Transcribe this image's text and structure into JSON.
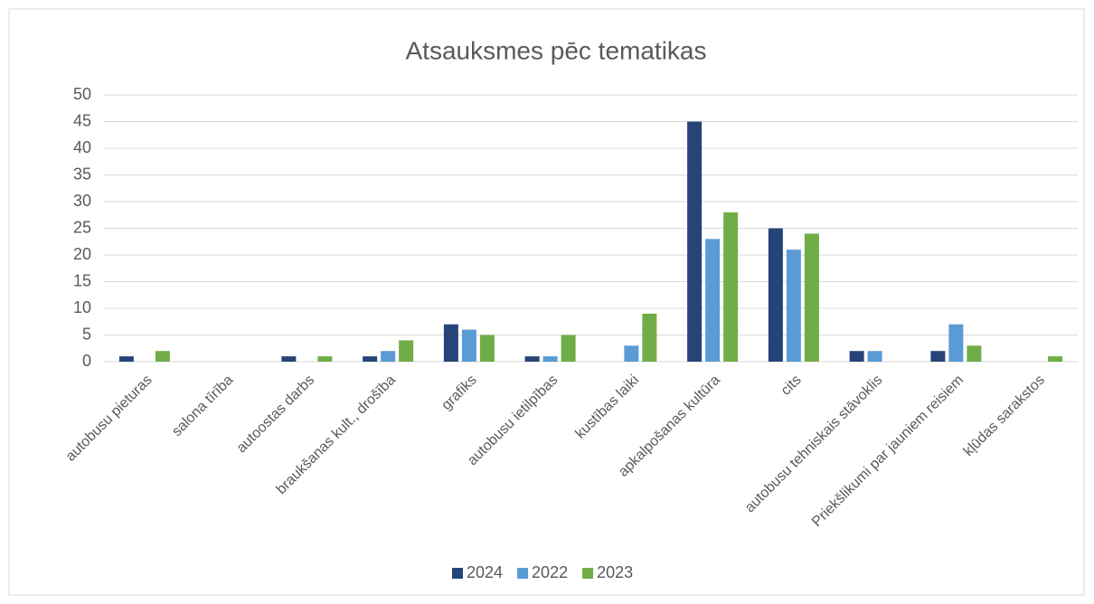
{
  "chart_data": {
    "type": "bar",
    "title": "Atsauksmes pēc tematikas",
    "categories": [
      "autobusu pieturas",
      "salona tīrība",
      "autoostas darbs",
      "braukšanas kult., drošība",
      "grafiks",
      "autobusu ietilpības",
      "kustības laiki",
      "apkalpošanas kultūra",
      "cits",
      "autobusu tehniskais stāvoklis",
      "Priekšlikumi par jauniem reisiem",
      "kļūdas sarakstos"
    ],
    "series": [
      {
        "name": "2024",
        "color": "#264478",
        "values": [
          1,
          0,
          1,
          1,
          7,
          1,
          0,
          45,
          25,
          2,
          2,
          0
        ]
      },
      {
        "name": "2022",
        "color": "#5b9bd5",
        "values": [
          0,
          0,
          0,
          2,
          6,
          1,
          3,
          23,
          21,
          2,
          7,
          0
        ]
      },
      {
        "name": "2023",
        "color": "#70ad47",
        "values": [
          2,
          0,
          1,
          4,
          5,
          5,
          9,
          28,
          24,
          0,
          3,
          1
        ]
      }
    ],
    "ylim": [
      0,
      50
    ],
    "yticks": [
      0,
      5,
      10,
      15,
      20,
      25,
      30,
      35,
      40,
      45,
      50
    ],
    "grid": true,
    "legend": "bottom"
  }
}
